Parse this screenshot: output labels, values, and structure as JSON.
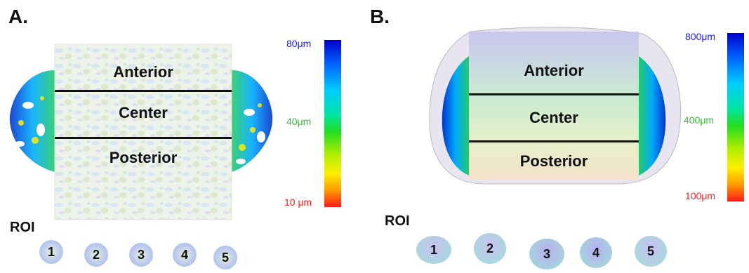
{
  "panels": [
    {
      "letter": "A.",
      "regions": [
        "Anterior",
        "Center",
        "Posterior"
      ],
      "colorbar": {
        "ticks": [
          "80μm",
          "40μm",
          "10 μm"
        ],
        "tick_colors": [
          "#1a1aff",
          "#22cc22",
          "#ff1a1a"
        ]
      },
      "roi_title": "ROI",
      "roi_labels": [
        "1",
        "2",
        "3",
        "4",
        "5"
      ]
    },
    {
      "letter": "B.",
      "regions": [
        "Anterior",
        "Center",
        "Posterior"
      ],
      "colorbar": {
        "ticks": [
          "800μm",
          "400μm",
          "100μm"
        ],
        "tick_colors": [
          "#1a1aff",
          "#22cc22",
          "#ff1a1a"
        ]
      },
      "roi_title": "ROI",
      "roi_labels": [
        "1",
        "2",
        "3",
        "4",
        "5"
      ]
    }
  ],
  "colormap": [
    "#0000cc",
    "#0066ff",
    "#00ccff",
    "#00e5a0",
    "#22dd22",
    "#aaee00",
    "#ffee00",
    "#ff9900",
    "#ff1a1a"
  ]
}
